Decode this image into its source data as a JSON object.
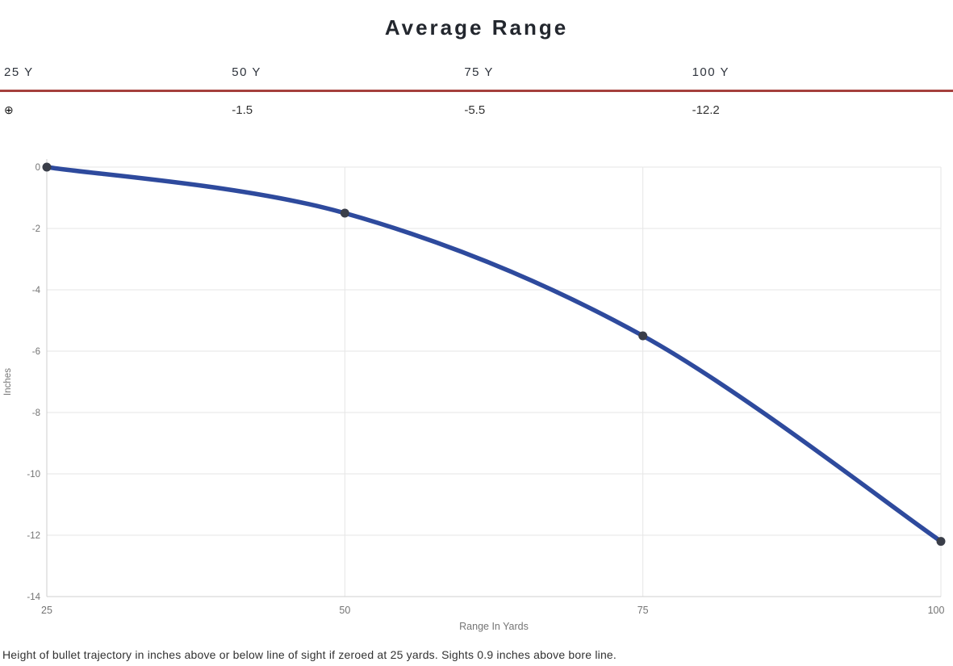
{
  "page": {
    "title": "Average Range",
    "footnote": "Height of bullet trajectory in inches above or below line of sight if zeroed at 25 yards. Sights 0.9 inches above bore line."
  },
  "range_table": {
    "columns": [
      "25 Y",
      "50 Y",
      "75 Y",
      "100 Y"
    ],
    "values": {
      "col1": "⊕",
      "col2": "-1.5",
      "col3": "-5.5",
      "col4": "-12.2"
    },
    "zero_symbol_meaning": "zeroed at this range",
    "rule_color": "#a5403d"
  },
  "chart_data": {
    "type": "line",
    "title": "Average Range",
    "x": [
      25,
      50,
      75,
      100
    ],
    "values": [
      0,
      -1.5,
      -5.5,
      -12.2
    ],
    "xlabel": "Range In Yards",
    "ylabel": "Inches",
    "xlim": [
      25,
      100
    ],
    "ylim": [
      -14,
      0
    ],
    "x_ticks": [
      25,
      50,
      75,
      100
    ],
    "y_tick_step": 2,
    "y_ticks": [
      0,
      -2,
      -4,
      -6,
      -8,
      -10,
      -12,
      -14
    ],
    "grid": true,
    "legend": "none",
    "line_color": "#2e4a9d",
    "marker_color": "#3a3e49",
    "grid_color": "#e6e6e6",
    "axis_line_color": "#cfcfcf",
    "tick_text_color": "#737373",
    "axis_title_color": "#757575"
  }
}
